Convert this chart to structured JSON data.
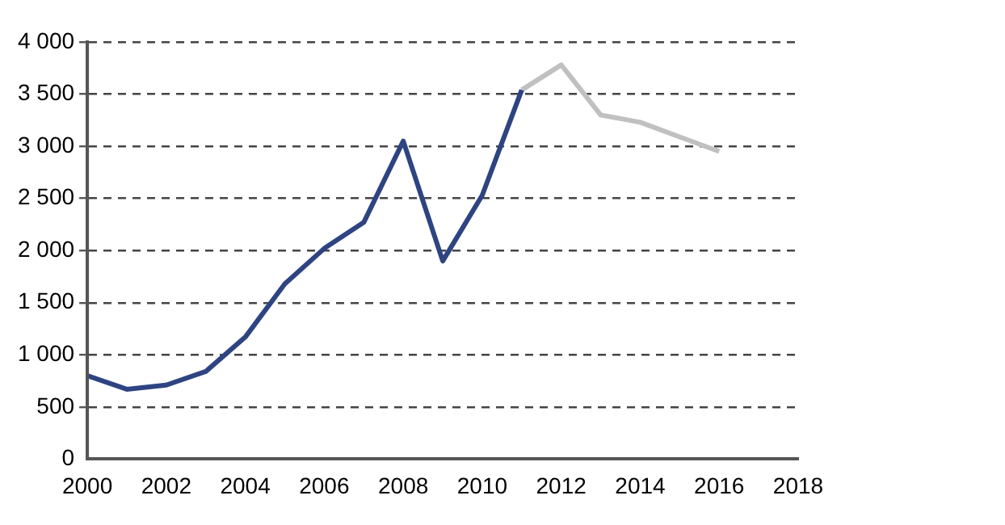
{
  "chart_data": {
    "type": "line",
    "xlim": [
      2000,
      2018
    ],
    "xticks": [
      2000,
      2002,
      2004,
      2006,
      2008,
      2010,
      2012,
      2014,
      2016,
      2018
    ],
    "ylim": [
      0,
      4000
    ],
    "yticks": [
      0,
      500,
      {
        "value": 1000,
        "label": "1 000"
      },
      {
        "value": 1500,
        "label": "1 500"
      },
      {
        "value": 2000,
        "label": "2 000"
      },
      {
        "value": 2500,
        "label": "2 500"
      },
      {
        "value": 3000,
        "label": "3 000"
      },
      {
        "value": 3500,
        "label": "3 500"
      },
      {
        "value": 4000,
        "label": "4 000"
      }
    ],
    "grid": "y",
    "legend": false,
    "marker": "none",
    "line_style": "solid",
    "series": [
      {
        "color": "#2e4482",
        "x": [
          2000,
          2001,
          2002,
          2003,
          2004,
          2005,
          2006,
          2007,
          2008,
          2009,
          2010,
          2011
        ],
        "values": [
          800,
          670,
          710,
          840,
          1170,
          1680,
          2020,
          2270,
          3050,
          1900,
          2530,
          3540
        ]
      },
      {
        "color": "#c0c0c0",
        "x": [
          2011,
          2012,
          2013,
          2014,
          2015,
          2016
        ],
        "values": [
          3540,
          3780,
          3300,
          3230,
          3090,
          2950
        ]
      }
    ]
  }
}
